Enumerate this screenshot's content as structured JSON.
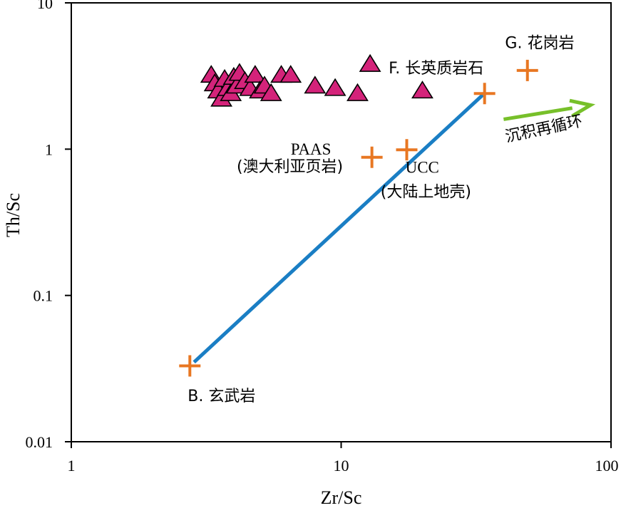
{
  "chart_data": {
    "type": "scatter",
    "xscale": "log",
    "yscale": "log",
    "xlabel": "Zr/Sc",
    "ylabel": "Th/Sc",
    "xlim": [
      1,
      100
    ],
    "ylim": [
      0.01,
      10
    ],
    "grid": false,
    "x_ticks": [
      {
        "value": 1,
        "label": "1"
      },
      {
        "value": 10,
        "label": "10"
      },
      {
        "value": 100,
        "label": "100"
      }
    ],
    "y_ticks": [
      {
        "value": 0.01,
        "label": "0.01"
      },
      {
        "value": 0.1,
        "label": "0.1"
      },
      {
        "value": 1,
        "label": "1"
      },
      {
        "value": 10,
        "label": "10"
      }
    ],
    "series": [
      {
        "marker": "triangle",
        "color": "#d4237a",
        "points": [
          {
            "x": 3.3,
            "y": 3.2
          },
          {
            "x": 3.4,
            "y": 2.8
          },
          {
            "x": 3.5,
            "y": 2.5
          },
          {
            "x": 3.6,
            "y": 2.2
          },
          {
            "x": 3.7,
            "y": 3.0
          },
          {
            "x": 3.8,
            "y": 2.6
          },
          {
            "x": 3.9,
            "y": 2.4
          },
          {
            "x": 4.0,
            "y": 3.1
          },
          {
            "x": 4.1,
            "y": 2.7
          },
          {
            "x": 4.2,
            "y": 3.3
          },
          {
            "x": 4.4,
            "y": 2.9
          },
          {
            "x": 4.6,
            "y": 2.6
          },
          {
            "x": 4.8,
            "y": 3.2
          },
          {
            "x": 5.0,
            "y": 2.5
          },
          {
            "x": 5.2,
            "y": 2.7
          },
          {
            "x": 5.5,
            "y": 2.4
          },
          {
            "x": 6.0,
            "y": 3.2
          },
          {
            "x": 6.5,
            "y": 3.2
          },
          {
            "x": 8.0,
            "y": 2.7
          },
          {
            "x": 9.5,
            "y": 2.6
          },
          {
            "x": 11.5,
            "y": 2.4
          },
          {
            "x": 12.8,
            "y": 3.8
          },
          {
            "x": 20.0,
            "y": 2.5
          }
        ]
      },
      {
        "marker": "cross",
        "color": "#e87722",
        "points": [
          {
            "x": 2.75,
            "y": 0.033
          },
          {
            "x": 13.0,
            "y": 0.88
          },
          {
            "x": 17.5,
            "y": 0.99
          },
          {
            "x": 34.0,
            "y": 2.4
          },
          {
            "x": 49.0,
            "y": 3.45
          }
        ]
      }
    ],
    "trend_line": {
      "color": "#1a7ec4",
      "from": {
        "x": 2.85,
        "y": 0.035
      },
      "to": {
        "x": 33.5,
        "y": 2.35
      }
    },
    "recycle_arrow": {
      "color": "#77c02a",
      "from": {
        "x": 40.0,
        "y": 1.6
      },
      "to": {
        "x": 84.0,
        "y": 2.0
      }
    },
    "annotations": [
      {
        "text": "G. 花岗岩",
        "x": 40.5,
        "y": 4.9
      },
      {
        "text": "F. 长英质岩石",
        "x": 15.0,
        "y": 3.3
      },
      {
        "text": "沉积再循环",
        "x": 41.0,
        "y": 1.12
      },
      {
        "text": "PAAS",
        "x": 6.5,
        "y": 0.92
      },
      {
        "text": "(澳大利亚页岩)",
        "x": 4.1,
        "y": 0.7
      },
      {
        "text": "UCC",
        "x": 17.3,
        "y": 0.69
      },
      {
        "text": "(大陆上地壳)",
        "x": 14.0,
        "y": 0.47
      },
      {
        "text": "B. 玄武岩",
        "x": 2.7,
        "y": 0.019
      }
    ]
  }
}
